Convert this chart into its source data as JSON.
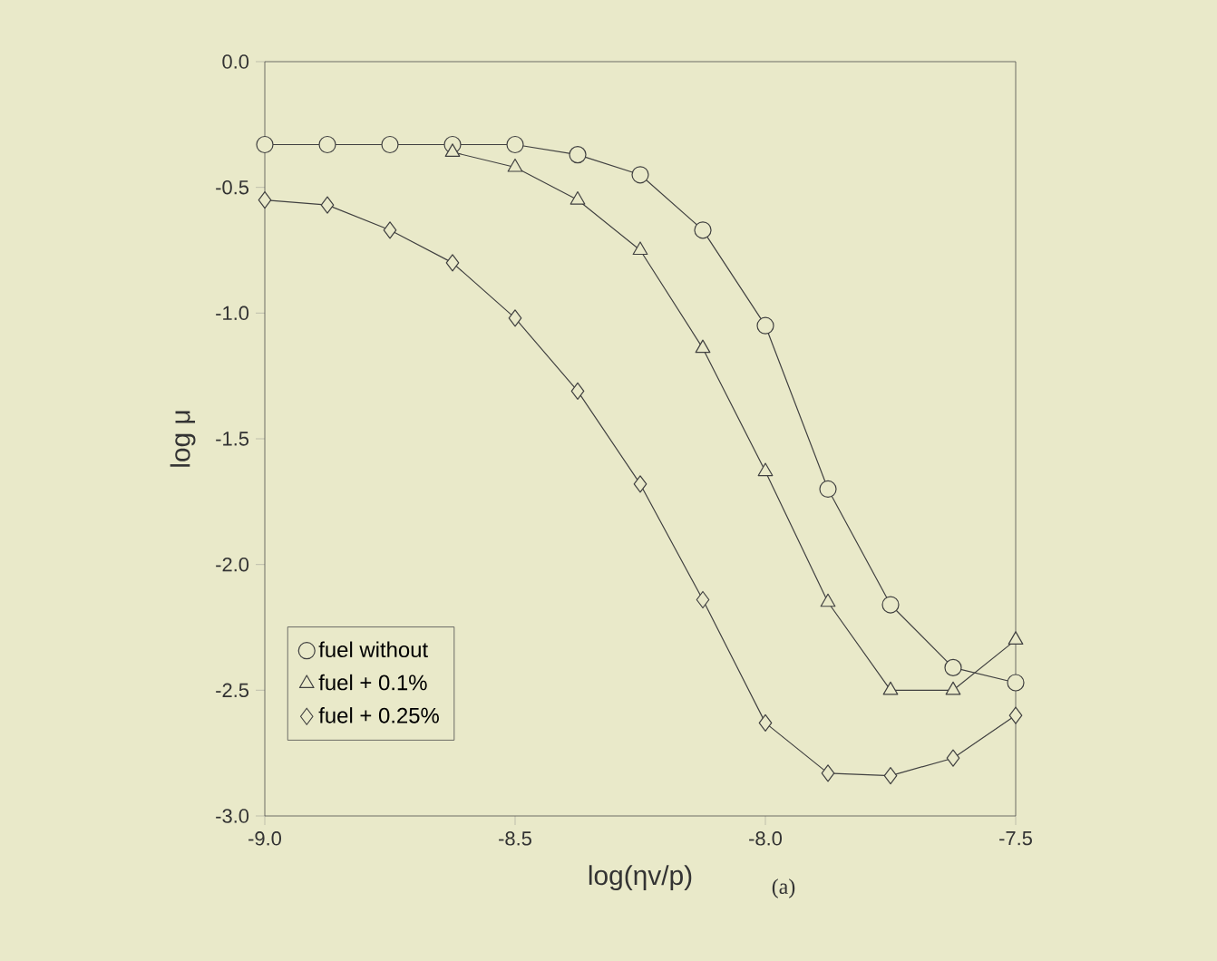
{
  "chart_data": {
    "type": "line",
    "xlabel": "log(ηv/p)",
    "ylabel": "log μ",
    "annotations": [
      "(a)"
    ],
    "x": [
      -9.0,
      -8.875,
      -8.75,
      -8.625,
      -8.5,
      -8.375,
      -8.25,
      -8.125,
      -8.0,
      -7.875,
      -7.75,
      -7.625,
      -7.5
    ],
    "series": [
      {
        "name": "fuel without",
        "color": "#404040",
        "marker": "circle",
        "values": [
          -0.33,
          -0.33,
          -0.33,
          -0.33,
          -0.33,
          -0.37,
          -0.45,
          -0.67,
          -1.05,
          -1.7,
          -2.16,
          -2.41,
          -2.47
        ]
      },
      {
        "name": "fuel + 0.1%",
        "color": "#404040",
        "marker": "triangle",
        "values": [
          null,
          null,
          null,
          -0.36,
          -0.42,
          -0.55,
          -0.75,
          -1.14,
          -1.63,
          -2.15,
          -2.5,
          -2.5,
          -2.3
        ]
      },
      {
        "name": "fuel + 0.25%",
        "color": "#404040",
        "marker": "diamond",
        "values": [
          -0.55,
          -0.57,
          -0.67,
          -0.8,
          -1.02,
          -1.31,
          -1.68,
          -2.14,
          -2.63,
          -2.83,
          -2.84,
          -2.77,
          -2.6
        ]
      }
    ],
    "xlim": [
      -9.0,
      -7.5
    ],
    "xticks": [
      {
        "value": -9.0,
        "label": "-9.0"
      },
      {
        "value": -8.5,
        "label": "-8.5"
      },
      {
        "value": -8.0,
        "label": "-8.0"
      },
      {
        "value": -7.5,
        "label": "-7.5"
      }
    ],
    "ylim": [
      -3.0,
      0.0
    ],
    "yticks": [
      {
        "value": -3.0,
        "label": "-3.0"
      },
      {
        "value": -2.5,
        "label": "-2.5"
      },
      {
        "value": -2.0,
        "label": "-2.0"
      },
      {
        "value": -1.5,
        "label": "-1.5"
      },
      {
        "value": -1.0,
        "label": "-1.0"
      },
      {
        "value": -0.5,
        "label": "-0.5"
      },
      {
        "value": 0.0,
        "label": "0.0"
      }
    ],
    "grid": false,
    "legend": "bottom left",
    "line_style": "solid"
  }
}
